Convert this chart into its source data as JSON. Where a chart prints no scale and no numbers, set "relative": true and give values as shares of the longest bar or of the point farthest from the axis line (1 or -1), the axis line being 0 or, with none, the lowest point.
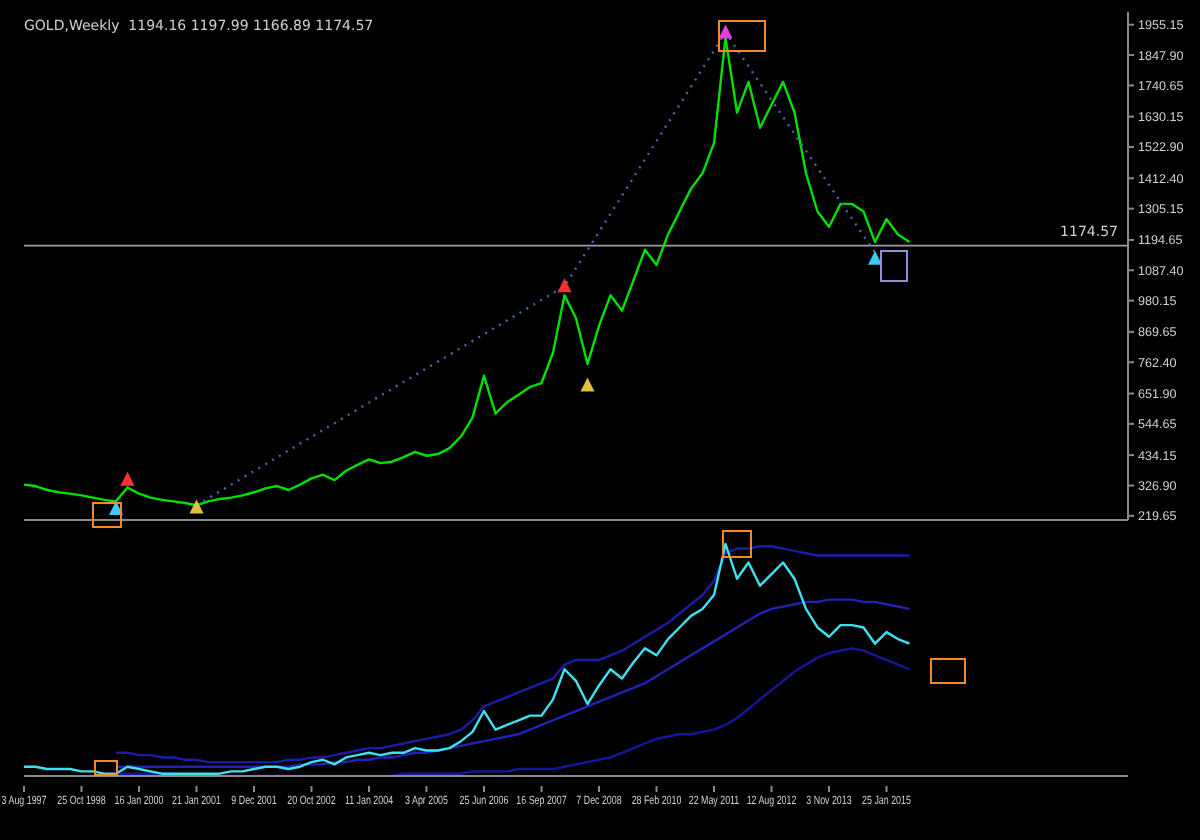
{
  "chart_data": [
    {
      "type": "line",
      "title": "GOLD,Weekly  1194.16 1197.99 1166.89 1174.57",
      "tick_labels": "y",
      "categories": [
        null,
        null,
        null,
        null,
        null,
        null,
        null,
        null,
        null,
        null,
        null,
        null,
        null,
        null,
        null,
        null,
        null,
        null,
        null,
        null,
        null,
        null,
        null,
        null,
        null,
        null,
        null,
        null,
        null,
        null,
        null,
        null,
        null,
        null,
        null,
        null,
        null,
        null,
        null,
        null,
        null,
        null,
        null,
        null,
        null,
        null,
        null,
        null,
        null,
        null,
        null,
        null,
        null,
        null,
        null,
        null,
        null,
        null,
        null,
        null,
        null,
        null,
        null,
        null,
        null,
        null,
        null,
        null,
        null,
        null,
        null,
        null,
        null,
        null,
        null,
        null,
        null,
        null,
        null,
        null,
        null,
        null,
        null,
        null,
        null,
        null,
        null,
        null,
        null,
        null,
        null,
        null,
        null,
        null,
        null,
        null,
        null
      ],
      "ylim": [
        205,
        2000
      ],
      "yticks": [
        219.65,
        {
          "value": 326.9,
          "label": "326.90"
        },
        434.15,
        544.65,
        {
          "value": 651.9,
          "label": "651.90"
        },
        {
          "value": 762.4,
          "label": "762.40"
        },
        869.65,
        980.15,
        {
          "value": 1087.4,
          "label": "1087.40"
        },
        1194.65,
        1305.15,
        {
          "value": 1412.4,
          "label": "1412.40"
        },
        {
          "value": 1522.9,
          "label": "1522.90"
        },
        1630.15,
        1740.65,
        {
          "value": 1847.9,
          "label": "1847.90"
        },
        1955.15
      ],
      "series": [
        {
          "color": "#00e000",
          "values": [
            330,
            325,
            311,
            303,
            298,
            292,
            284,
            276,
            271,
            320,
            298,
            284,
            276,
            271,
            265,
            257,
            271,
            279,
            284,
            292,
            303,
            317,
            325,
            311,
            330,
            352,
            365,
            346,
            379,
            400,
            419,
            406,
            411,
            427,
            446,
            432,
            438,
            459,
            500,
            567,
            715,
            581,
            621,
            648,
            675,
            689,
            796,
            999,
            918,
            756,
            891,
            999,
            945,
            1052,
            1160,
            1106,
            1214,
            1295,
            1376,
            1430,
            1537,
            1910,
            1645,
            1753,
            1591,
            1672,
            1753,
            1645,
            1430,
            1295,
            1241,
            1322,
            1322,
            1295,
            1187,
            1268,
            1214,
            1187,
            null,
            null,
            null,
            null,
            null,
            null,
            null,
            null,
            null,
            null,
            null,
            null,
            null,
            null,
            null,
            null,
            null,
            null,
            null
          ]
        },
        {
          "color": "#4a66b0",
          "line_style": "dotted",
          "values": [
            null,
            null,
            null,
            null,
            null,
            null,
            null,
            null,
            null,
            null,
            null,
            null,
            null,
            null,
            null,
            257,
            null,
            null,
            null,
            null,
            null,
            null,
            null,
            null,
            null,
            null,
            null,
            null,
            null,
            null,
            null,
            null,
            null,
            null,
            null,
            null,
            null,
            null,
            null,
            null,
            null,
            null,
            null,
            null,
            null,
            null,
            null,
            1031,
            null,
            null,
            null,
            null,
            null,
            null,
            null,
            null,
            null,
            null,
            null,
            null,
            null,
            1928,
            null,
            null,
            null,
            null,
            null,
            null,
            null,
            null,
            null,
            null,
            null,
            null,
            1150,
            null,
            null,
            null,
            null,
            null,
            null,
            null,
            null,
            null,
            null,
            null,
            null,
            null,
            null,
            null,
            null,
            null,
            null,
            null,
            null,
            null,
            null
          ]
        },
        {
          "type": "scatter",
          "marker": "triangle",
          "values": [
            null,
            null,
            null,
            null,
            null,
            null,
            null,
            null,
            244,
            347,
            null,
            null,
            null,
            null,
            null,
            249,
            null,
            null,
            null,
            null,
            null,
            null,
            null,
            null,
            null,
            null,
            null,
            null,
            null,
            null,
            null,
            null,
            null,
            null,
            null,
            null,
            null,
            null,
            null,
            null,
            null,
            null,
            null,
            null,
            null,
            null,
            null,
            1031,
            null,
            680,
            null,
            null,
            null,
            null,
            null,
            null,
            null,
            null,
            null,
            null,
            null,
            1928,
            null,
            null,
            null,
            null,
            null,
            null,
            null,
            null,
            null,
            null,
            null,
            null,
            1128,
            null,
            null,
            null,
            null,
            null,
            null,
            null,
            null,
            null,
            null,
            null,
            null,
            null,
            null,
            null,
            null,
            null,
            null,
            null,
            null,
            null,
            null
          ],
          "colors": [
            null,
            null,
            null,
            null,
            null,
            null,
            null,
            null,
            "#40c8f0",
            "#ff3030",
            null,
            null,
            null,
            null,
            null,
            "#e0c040",
            null,
            null,
            null,
            null,
            null,
            null,
            null,
            null,
            null,
            null,
            null,
            null,
            null,
            null,
            null,
            null,
            null,
            null,
            null,
            null,
            null,
            null,
            null,
            null,
            null,
            null,
            null,
            null,
            null,
            null,
            null,
            "#ff3030",
            null,
            "#e0c040",
            null,
            null,
            null,
            null,
            null,
            null,
            null,
            null,
            null,
            null,
            null,
            "#e040e0",
            null,
            null,
            null,
            null,
            null,
            null,
            null,
            null,
            null,
            null,
            null,
            null,
            "#40c8f0",
            null,
            null,
            null,
            null,
            null,
            null,
            null,
            null,
            null,
            null,
            null,
            null,
            null,
            null,
            null,
            null,
            null,
            null,
            null,
            null,
            null,
            null
          ]
        }
      ],
      "ref_lines": [
        {
          "axis": "y",
          "value": 1174.57,
          "label": "1174.57",
          "color": "#a0a0a0"
        }
      ]
    },
    {
      "type": "line",
      "relative": true,
      "tick_labels": "x",
      "categories": [
        "3 Aug 1997",
        null,
        null,
        null,
        null,
        "25 Oct 1998",
        null,
        null,
        null,
        null,
        "16 Jan 2000",
        null,
        null,
        null,
        null,
        "21 Jan 2001",
        null,
        null,
        null,
        null,
        "9 Dec 2001",
        null,
        null,
        null,
        null,
        "20 Oct 2002",
        null,
        null,
        null,
        null,
        "11 Jan 2004",
        null,
        null,
        null,
        null,
        "3 Apr 2005",
        null,
        null,
        null,
        null,
        "25 Jun 2006",
        null,
        null,
        null,
        null,
        "16 Sep 2007",
        null,
        null,
        null,
        null,
        "7 Dec 2008",
        null,
        null,
        null,
        null,
        "28 Feb 2010",
        null,
        null,
        null,
        null,
        "22 May 2011",
        null,
        null,
        null,
        null,
        "12 Aug 2012",
        null,
        null,
        null,
        null,
        "3 Nov 2013",
        null,
        null,
        null,
        null,
        "25 Jan 2015",
        null,
        null,
        null,
        null,
        null,
        null,
        null,
        null,
        null,
        null,
        null,
        null,
        null,
        null,
        null,
        null,
        null,
        null,
        null,
        null,
        null
      ],
      "series": [
        {
          "color": "#1c1ca8",
          "values": [
            null,
            null,
            null,
            null,
            null,
            null,
            null,
            null,
            0.1,
            0.1,
            0.09,
            0.09,
            0.08,
            0.08,
            0.07,
            0.07,
            0.06,
            0.06,
            0.06,
            0.06,
            0.06,
            0.06,
            0.06,
            0.07,
            0.07,
            0.08,
            0.08,
            0.09,
            0.1,
            0.11,
            0.12,
            0.12,
            0.13,
            0.14,
            0.15,
            0.16,
            0.17,
            0.18,
            0.2,
            0.24,
            0.3,
            0.32,
            0.34,
            0.36,
            0.38,
            0.4,
            0.42,
            0.48,
            0.5,
            0.5,
            0.5,
            0.52,
            0.54,
            0.57,
            0.6,
            0.63,
            0.66,
            0.7,
            0.74,
            0.78,
            0.84,
            0.96,
            0.98,
            0.98,
            0.99,
            0.99,
            0.98,
            0.97,
            0.96,
            0.95,
            0.95,
            0.95,
            0.95,
            0.95,
            0.95,
            0.95,
            0.95,
            0.95,
            null,
            null,
            null,
            null,
            null,
            null,
            null,
            null,
            null,
            null,
            null,
            null,
            null,
            null,
            null,
            null,
            null,
            null,
            null
          ]
        },
        {
          "color": "#2222b4",
          "values": [
            null,
            null,
            null,
            null,
            null,
            null,
            null,
            null,
            0.04,
            0.04,
            0.04,
            0.04,
            0.04,
            0.04,
            0.04,
            0.04,
            0.04,
            0.04,
            0.04,
            0.04,
            0.04,
            0.04,
            0.04,
            0.04,
            0.05,
            0.05,
            0.05,
            0.06,
            0.06,
            0.07,
            0.07,
            0.08,
            0.08,
            0.09,
            0.1,
            0.1,
            0.11,
            0.12,
            0.13,
            0.14,
            0.15,
            0.16,
            0.17,
            0.18,
            0.2,
            0.22,
            0.24,
            0.26,
            0.28,
            0.3,
            0.32,
            0.34,
            0.36,
            0.38,
            0.4,
            0.43,
            0.46,
            0.49,
            0.52,
            0.55,
            0.58,
            0.61,
            0.64,
            0.67,
            0.7,
            0.72,
            0.73,
            0.74,
            0.75,
            0.75,
            0.76,
            0.76,
            0.76,
            0.75,
            0.75,
            0.74,
            0.73,
            0.72,
            null,
            null,
            null,
            null,
            null,
            null,
            null,
            null,
            null,
            null,
            null,
            null,
            null,
            null,
            null,
            null,
            null,
            null,
            null
          ]
        },
        {
          "color": "#16169c",
          "values": [
            null,
            null,
            null,
            null,
            null,
            null,
            null,
            null,
            0.01,
            0.01,
            0.01,
            0.01,
            0.01,
            0.01,
            0,
            0,
            0,
            0,
            0,
            0,
            0,
            0,
            0,
            0,
            0,
            0,
            0,
            0,
            0,
            0,
            0,
            0,
            0,
            0.01,
            0.01,
            0.01,
            0.01,
            0.01,
            0.01,
            0.02,
            0.02,
            0.02,
            0.02,
            0.03,
            0.03,
            0.03,
            0.03,
            0.04,
            0.05,
            0.06,
            0.07,
            0.08,
            0.1,
            0.12,
            0.14,
            0.16,
            0.17,
            0.18,
            0.18,
            0.19,
            0.2,
            0.22,
            0.25,
            0.29,
            0.33,
            0.37,
            0.41,
            0.45,
            0.48,
            0.51,
            0.53,
            0.54,
            0.55,
            0.54,
            0.52,
            0.5,
            0.48,
            0.46,
            null,
            null,
            null,
            null,
            null,
            null,
            null,
            null,
            null,
            null,
            null,
            null,
            null,
            null,
            null,
            null,
            null,
            null,
            null
          ]
        },
        {
          "color": "#40e0f0",
          "values": [
            0.04,
            0.04,
            0.03,
            0.03,
            0.03,
            0.02,
            0.02,
            0.01,
            0.01,
            0.04,
            0.03,
            0.02,
            0.01,
            0.01,
            0.01,
            0.01,
            0.01,
            0.01,
            0.02,
            0.02,
            0.03,
            0.04,
            0.04,
            0.03,
            0.04,
            0.06,
            0.07,
            0.05,
            0.08,
            0.09,
            0.1,
            0.09,
            0.1,
            0.1,
            0.12,
            0.11,
            0.11,
            0.12,
            0.15,
            0.19,
            0.28,
            0.2,
            0.22,
            0.24,
            0.26,
            0.26,
            0.33,
            0.46,
            0.41,
            0.31,
            0.39,
            0.46,
            0.42,
            0.49,
            0.55,
            0.52,
            0.59,
            0.64,
            0.69,
            0.72,
            0.78,
            1,
            0.85,
            0.92,
            0.82,
            0.87,
            0.92,
            0.85,
            0.72,
            0.64,
            0.6,
            0.65,
            0.65,
            0.64,
            0.57,
            0.62,
            0.59,
            0.57,
            null,
            null,
            null,
            null,
            null,
            null,
            null,
            null,
            null,
            null,
            null,
            null,
            null,
            null,
            null,
            null,
            null,
            null,
            null
          ]
        }
      ]
    }
  ]
}
